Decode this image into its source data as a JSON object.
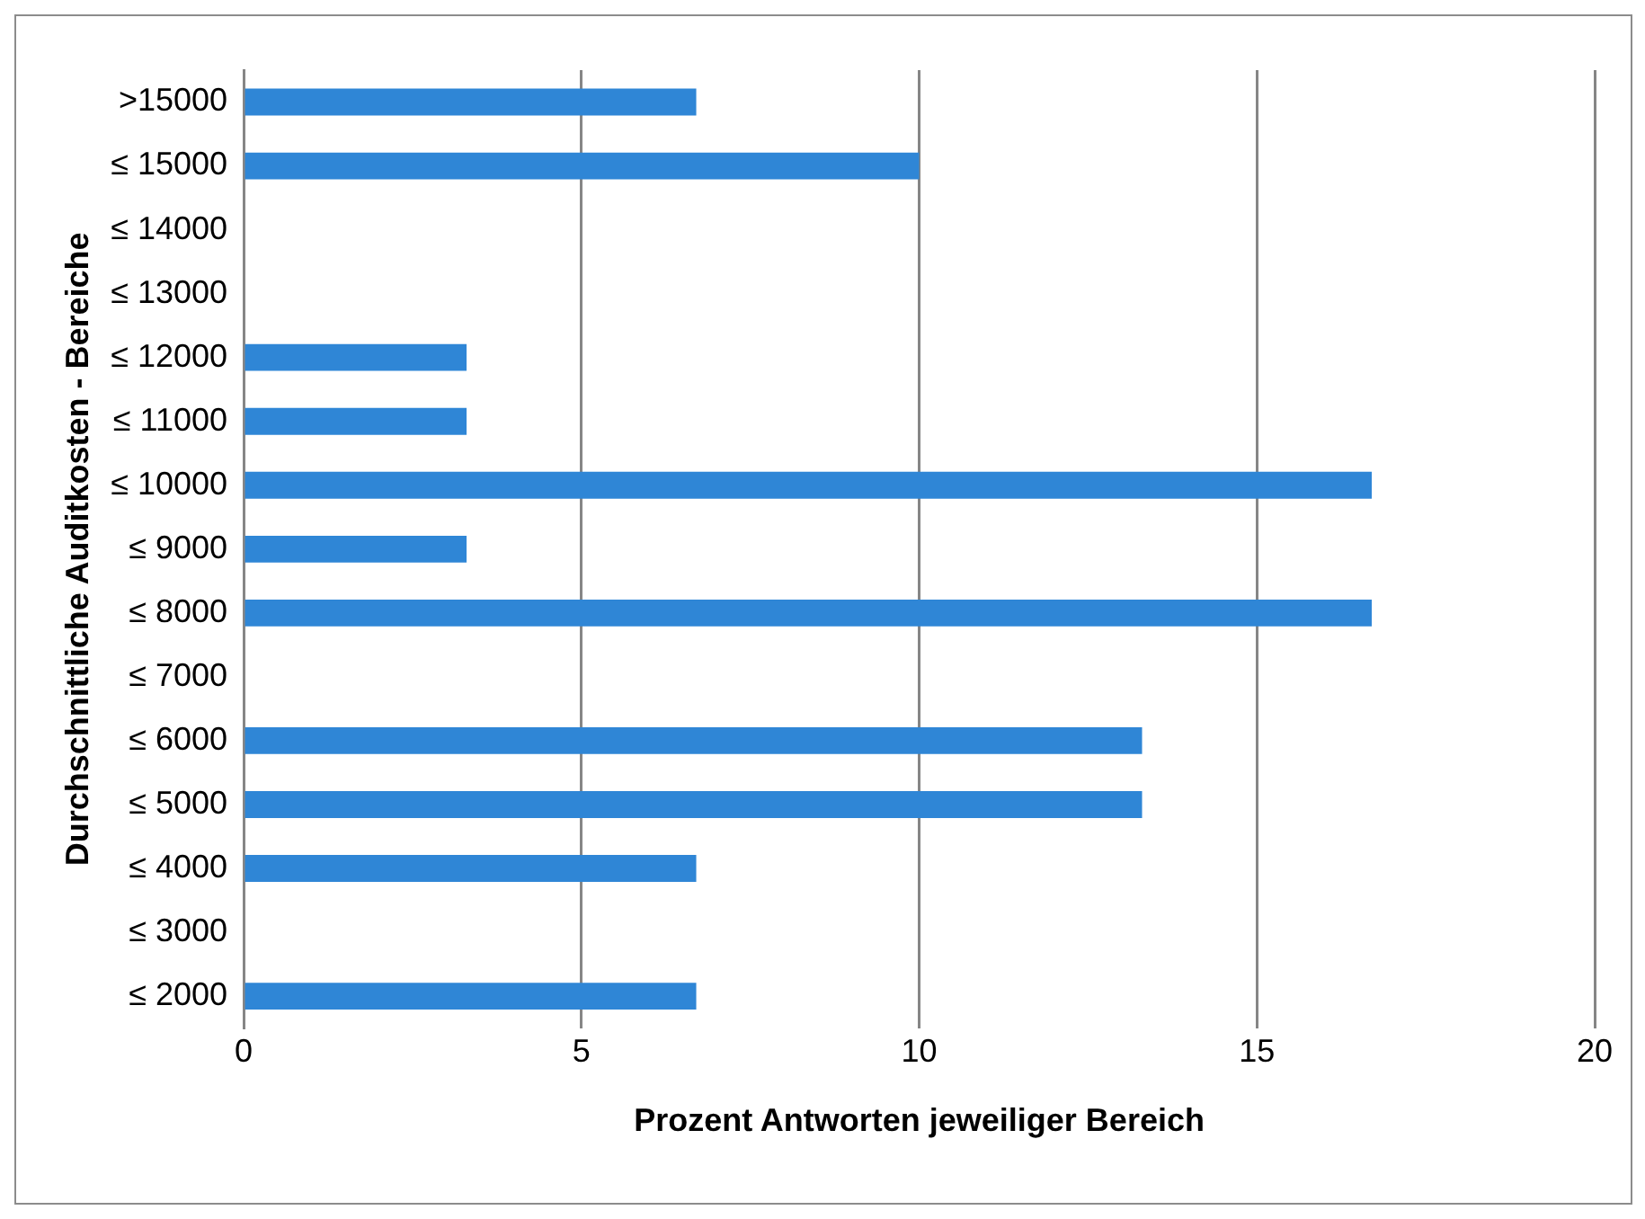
{
  "chart_data": {
    "type": "bar",
    "orientation": "horizontal",
    "xlabel": "Prozent Antworten jeweiliger Bereich",
    "ylabel": "Durchschnittliche Auditkosten - Bereiche",
    "categories": [
      ">15000",
      "≤ 15000",
      "≤ 14000",
      "≤ 13000",
      "≤ 12000",
      "≤ 11000",
      "≤ 10000",
      "≤ 9000",
      "≤ 8000",
      "≤ 7000",
      "≤ 6000",
      "≤ 5000",
      "≤ 4000",
      "≤ 3000",
      "≤ 2000"
    ],
    "values": [
      6.7,
      10,
      0,
      0,
      3.3,
      3.3,
      16.7,
      3.3,
      16.7,
      0,
      13.3,
      13.3,
      6.7,
      0,
      6.7
    ],
    "color": "#2f86d6",
    "xlim": [
      0,
      20
    ],
    "xticks": [
      0,
      5,
      10,
      15,
      20
    ],
    "grid": "x",
    "legend": false
  }
}
